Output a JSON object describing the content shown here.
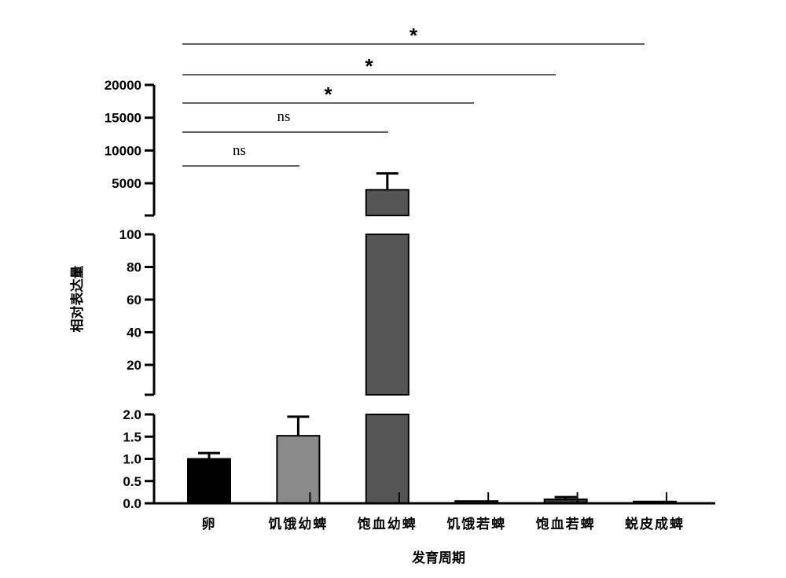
{
  "chart_data": {
    "type": "bar",
    "xlabel": "发育周期",
    "ylabel": "相对表达量",
    "categories": [
      "卵",
      "饥饿幼蜱",
      "饱血幼蜱",
      "饥饿若蜱",
      "饱血若蜱",
      "蜕皮成蜱"
    ],
    "values": [
      1.0,
      1.52,
      4000,
      0.05,
      0.09,
      0.04
    ],
    "errors": [
      0.13,
      0.43,
      2500,
      0.0,
      0.05,
      0.0
    ],
    "bar_colors": [
      "#000000",
      "#8a8a8a",
      "#555555",
      "#333333",
      "#333333",
      "#333333"
    ],
    "broken_axis": true,
    "segments": [
      {
        "ylim": [
          0,
          2.0
        ],
        "ticks": [
          "0.0",
          "0.5",
          "1.0",
          "1.5",
          "2.0"
        ],
        "tick_values": [
          0,
          0.5,
          1.0,
          1.5,
          2.0
        ]
      },
      {
        "ylim": [
          0,
          100
        ],
        "ticks": [
          "20",
          "40",
          "60",
          "80",
          "100"
        ],
        "tick_values": [
          20,
          40,
          60,
          80,
          100
        ]
      },
      {
        "ylim": [
          0,
          20000
        ],
        "ticks": [
          "5000",
          "10000",
          "15000",
          "20000"
        ],
        "tick_values": [
          5000,
          10000,
          15000,
          20000
        ]
      }
    ],
    "significance": [
      {
        "from": 0,
        "to": 1,
        "label": "ns"
      },
      {
        "from": 0,
        "to": 2,
        "label": "ns"
      },
      {
        "from": 0,
        "to": 3,
        "label": "*"
      },
      {
        "from": 0,
        "to": 4,
        "label": "*"
      },
      {
        "from": 0,
        "to": 5,
        "label": "*"
      }
    ],
    "grid": false,
    "legend": "none"
  }
}
